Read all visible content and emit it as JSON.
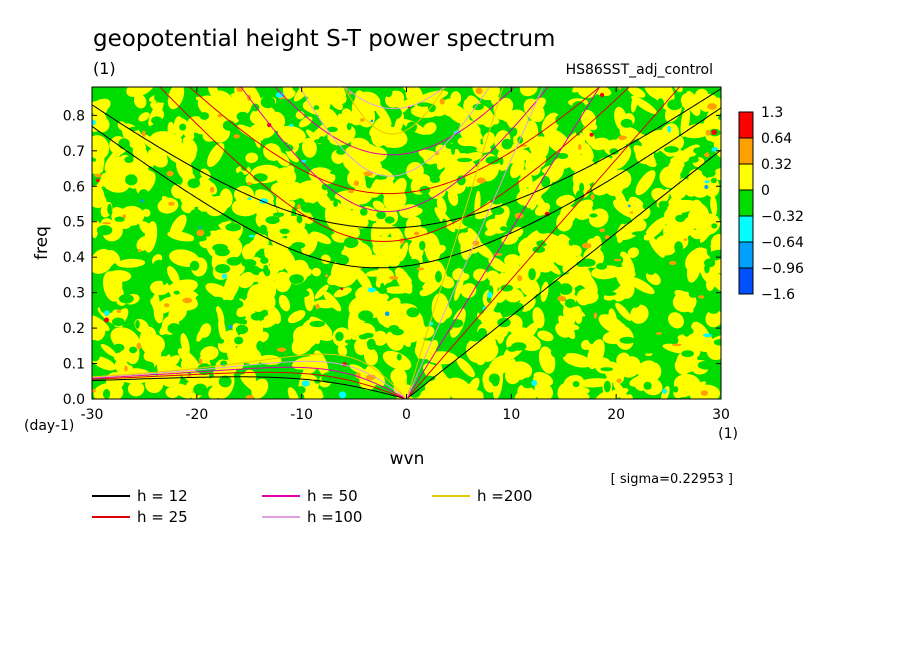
{
  "chart_data": {
    "type": "heatmap",
    "title": "geopotential height S-T power spectrum",
    "subtitle": "(1)",
    "case_label": "HS86SST_adj_control",
    "xlabel": "wvn",
    "x_unit": "(1)",
    "ylabel": "freq",
    "y_unit": "(day-1)",
    "xlim": [
      -30,
      30
    ],
    "ylim": [
      0,
      0.88
    ],
    "x_ticks": [
      -30,
      -20,
      -10,
      0,
      10,
      20,
      30
    ],
    "x_tick_labels": [
      "-30",
      "-20",
      "-10",
      "0",
      "10",
      "20",
      "30"
    ],
    "y_ticks": [
      0,
      0.1,
      0.2,
      0.3,
      0.4,
      0.5,
      0.6,
      0.7,
      0.8
    ],
    "y_tick_labels": [
      "0.0",
      "0.1",
      "0.2",
      "0.3",
      "0.4",
      "0.5",
      "0.6",
      "0.7",
      "0.8"
    ],
    "sigma_note": "[ sigma=0.22953 ]",
    "field_description": "noisy normalized power field dominated by near-zero values (yellow 0..0.32 and green -0.32..0) with sparse orange/red maxima and cyan/blue minima",
    "colorbar": {
      "levels": [
        "1.3",
        "0.64",
        "0.32",
        "0",
        "-0.32",
        "-0.64",
        "-0.96",
        "-1.6"
      ],
      "colors": [
        "#ff0000",
        "#ff9f00",
        "#ffff00",
        "#00dc00",
        "#00ffff",
        "#00a0ff",
        "#0050ff"
      ]
    },
    "dispersion_curves": [
      {
        "label": "h = 12",
        "color": "#000000"
      },
      {
        "label": "h = 25",
        "color": "#dc0000"
      },
      {
        "label": "h = 50",
        "color": "#e000b0"
      },
      {
        "label": "h =100",
        "color": "#e0a0e0"
      },
      {
        "label": "h =200",
        "color": "#e8c800"
      }
    ]
  }
}
